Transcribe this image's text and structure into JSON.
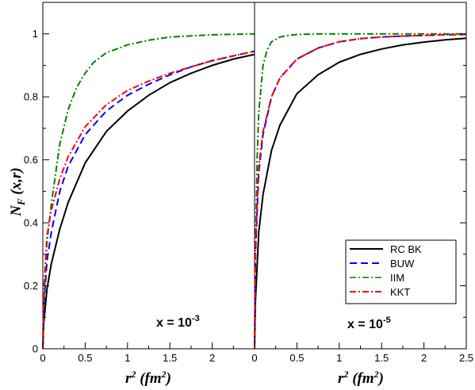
{
  "chart_data": {
    "type": "line",
    "ylabel": {
      "main": "N",
      "sub": "F",
      "args": " (x,r)"
    },
    "ylim": [
      0,
      1.1
    ],
    "yticks": [
      0,
      0.2,
      0.4,
      0.6,
      0.8,
      1
    ],
    "ytick_labels": [
      "0",
      "0.2",
      "0.4",
      "0.6",
      "0.8",
      "1"
    ],
    "legend": {
      "position": "bottom-right of right panel",
      "entries": [
        {
          "name": "RC BK",
          "color": "#000000",
          "dash": "solid"
        },
        {
          "name": "BUW",
          "color": "#0000ff",
          "dash": "dashed"
        },
        {
          "name": "IIM",
          "color": "#008000",
          "dash": "dashdot"
        },
        {
          "name": "KKT",
          "color": "#ff0000",
          "dash": "dashdot"
        }
      ]
    },
    "panels": [
      {
        "label": {
          "prefix": "x = 10",
          "exp": "-3"
        },
        "xlabel": {
          "main": "r",
          "sup": "2",
          "unit_pre": " (fm",
          "unit_sup": "2",
          "unit_post": ")"
        },
        "xlim": [
          0,
          2.5
        ],
        "xticks": [
          0,
          0.5,
          1,
          1.5,
          2
        ],
        "xtick_labels": [
          "0",
          "0.5",
          "1",
          "1.5",
          "2"
        ],
        "series": [
          {
            "name": "RC BK",
            "x": [
              0,
              0.01,
              0.05,
              0.1,
              0.2,
              0.3,
              0.5,
              0.75,
              1.0,
              1.25,
              1.5,
              1.75,
              2.0,
              2.25,
              2.5
            ],
            "y": [
              0,
              0.08,
              0.19,
              0.27,
              0.38,
              0.465,
              0.59,
              0.69,
              0.755,
              0.805,
              0.845,
              0.875,
              0.9,
              0.92,
              0.935
            ]
          },
          {
            "name": "BUW",
            "x": [
              0,
              0.01,
              0.05,
              0.1,
              0.2,
              0.3,
              0.5,
              0.75,
              1.0,
              1.25,
              1.5,
              1.75,
              2.0,
              2.25,
              2.5
            ],
            "y": [
              0,
              0.13,
              0.28,
              0.37,
              0.5,
              0.58,
              0.68,
              0.755,
              0.805,
              0.84,
              0.87,
              0.895,
              0.915,
              0.93,
              0.945
            ]
          },
          {
            "name": "IIM",
            "x": [
              0,
              0.01,
              0.05,
              0.1,
              0.2,
              0.3,
              0.4,
              0.5,
              0.6,
              0.75,
              1.0,
              1.25,
              1.5,
              2.0,
              2.5
            ],
            "y": [
              0,
              0.14,
              0.34,
              0.46,
              0.65,
              0.76,
              0.83,
              0.875,
              0.91,
              0.94,
              0.965,
              0.98,
              0.99,
              0.997,
              1.0
            ]
          },
          {
            "name": "KKT",
            "x": [
              0,
              0.01,
              0.05,
              0.1,
              0.2,
              0.3,
              0.5,
              0.75,
              1.0,
              1.25,
              1.5,
              1.75,
              2.0,
              2.25,
              2.5
            ],
            "y": [
              0,
              0.18,
              0.36,
              0.44,
              0.54,
              0.61,
              0.705,
              0.775,
              0.82,
              0.85,
              0.875,
              0.895,
              0.915,
              0.93,
              0.945
            ]
          }
        ]
      },
      {
        "label": {
          "prefix": "x = 10",
          "exp": "-5"
        },
        "xlabel": {
          "main": "r",
          "sup": "2",
          "unit_pre": " (fm",
          "unit_sup": "2",
          "unit_post": ")"
        },
        "xlim": [
          0,
          2.5
        ],
        "xticks": [
          0,
          0.5,
          1,
          1.5,
          2,
          2.5
        ],
        "xtick_labels": [
          "0",
          "0.5",
          "1",
          "1.5",
          "2",
          "2.5"
        ],
        "series": [
          {
            "name": "RC BK",
            "x": [
              0,
              0.01,
              0.05,
              0.1,
              0.2,
              0.3,
              0.5,
              0.75,
              1.0,
              1.25,
              1.5,
              1.75,
              2.0,
              2.25,
              2.5
            ],
            "y": [
              0,
              0.15,
              0.37,
              0.49,
              0.63,
              0.71,
              0.81,
              0.87,
              0.91,
              0.935,
              0.952,
              0.965,
              0.974,
              0.981,
              0.986
            ]
          },
          {
            "name": "BUW",
            "x": [
              0,
              0.01,
              0.05,
              0.1,
              0.2,
              0.3,
              0.5,
              0.75,
              1.0,
              1.25,
              1.5,
              1.75,
              2.0,
              2.25,
              2.5
            ],
            "y": [
              0,
              0.3,
              0.56,
              0.68,
              0.8,
              0.86,
              0.92,
              0.955,
              0.975,
              0.985,
              0.99,
              0.993,
              0.995,
              0.997,
              0.998
            ]
          },
          {
            "name": "IIM",
            "x": [
              0,
              0.01,
              0.03,
              0.05,
              0.1,
              0.15,
              0.2,
              0.3,
              0.4,
              0.5,
              0.75,
              1.0,
              1.5,
              2.0,
              2.5
            ],
            "y": [
              0,
              0.3,
              0.6,
              0.75,
              0.9,
              0.95,
              0.975,
              0.99,
              0.995,
              0.998,
              1.0,
              1.0,
              1.0,
              1.0,
              1.0
            ]
          },
          {
            "name": "KKT",
            "x": [
              0,
              0.01,
              0.05,
              0.1,
              0.2,
              0.3,
              0.5,
              0.75,
              1.0,
              1.25,
              1.5,
              1.75,
              2.0,
              2.25,
              2.5
            ],
            "y": [
              0,
              0.32,
              0.58,
              0.69,
              0.8,
              0.86,
              0.92,
              0.955,
              0.975,
              0.985,
              0.99,
              0.993,
              0.995,
              0.997,
              0.998
            ]
          }
        ]
      }
    ]
  }
}
